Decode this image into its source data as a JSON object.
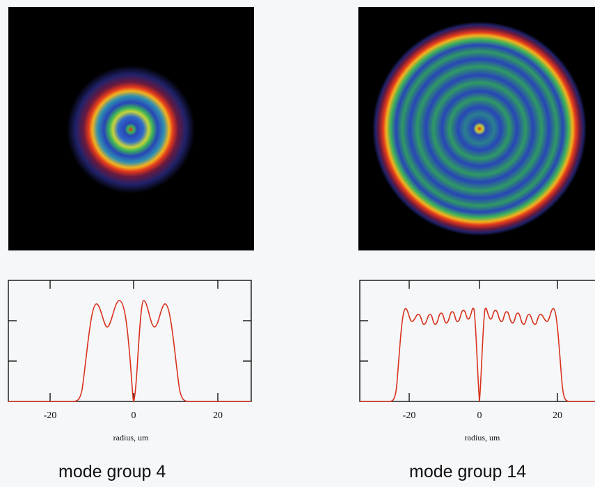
{
  "panels": [
    {
      "caption": "mode group 4",
      "xlabel": "radius, um",
      "xticks": [
        "-20",
        "0",
        "20"
      ],
      "xtick_values": [
        -20,
        0,
        20
      ],
      "xlim": [
        -29,
        29
      ],
      "ring_outer_radius_um": 13,
      "peaks_um": [
        -8,
        -4,
        3,
        8
      ],
      "dip_um": 0
    },
    {
      "caption": "mode group 14",
      "xlabel": "radius, um",
      "xticks": [
        "-20",
        "0",
        "20"
      ],
      "xtick_values": [
        -20,
        0,
        20
      ],
      "xlim": [
        -28,
        30
      ],
      "ring_outer_radius_um": 22,
      "peaks_um": [
        -18.5,
        18.5
      ],
      "dip_um": 0
    }
  ],
  "colors": {
    "background": "#000000",
    "curve": "#d9321e",
    "ring_red": "#e2391c",
    "ring_green": "#3bb25a",
    "ring_blue": "#2845b8"
  }
}
